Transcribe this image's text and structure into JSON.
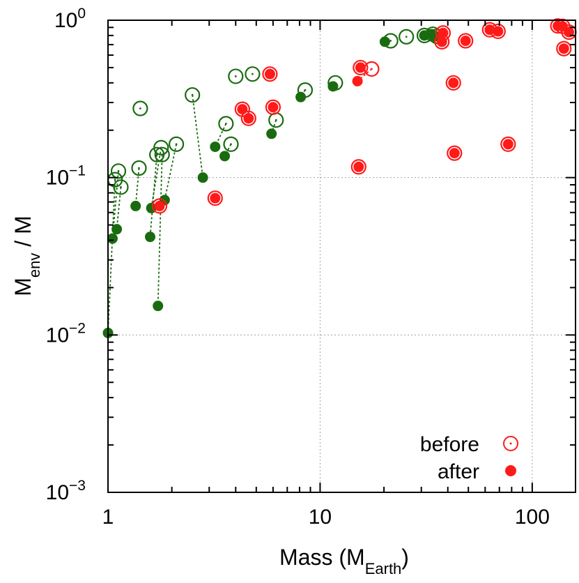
{
  "chart_data": {
    "type": "scatter",
    "x_scale": "log",
    "y_scale": "log",
    "xlim": [
      1,
      160
    ],
    "ylim": [
      0.001,
      1.0
    ],
    "grid": true,
    "x_ticks": [
      {
        "value": 1,
        "label": "1"
      },
      {
        "value": 10,
        "label": "10"
      },
      {
        "value": 100,
        "label": "100"
      }
    ],
    "y_ticks": [
      {
        "value": 0.001,
        "base": "10",
        "exp": "−3"
      },
      {
        "value": 0.01,
        "base": "10",
        "exp": "−2"
      },
      {
        "value": 0.1,
        "base": "10",
        "exp": "−1"
      },
      {
        "value": 1.0,
        "base": "10",
        "exp": "0"
      }
    ],
    "xlabel": {
      "main": "Mass (M",
      "sub": "Earth",
      "close": ")"
    },
    "ylabel": {
      "main": "M",
      "sub": "env",
      "rest": " / M"
    },
    "legend": {
      "position": "bottom-right",
      "entries": [
        {
          "label": "before",
          "marker": "open-circle-dot"
        },
        {
          "label": "after",
          "marker": "filled-circle"
        }
      ]
    },
    "colors": {
      "green": "#1a6b10",
      "red": "#ff1a1a"
    },
    "series": [
      {
        "name": "green",
        "color": "#1a6b10",
        "pairs": [
          {
            "before": [
              1.08,
              0.097
            ],
            "after": [
              1.0,
              0.0103
            ]
          },
          {
            "before": [
              1.12,
              0.11
            ],
            "after": [
              1.05,
              0.041
            ]
          },
          {
            "before": [
              1.15,
              0.087
            ],
            "after": [
              1.1,
              0.047
            ]
          },
          {
            "before": [
              1.4,
              0.115
            ],
            "after": [
              1.35,
              0.066
            ]
          },
          {
            "before": [
              1.42,
              0.275
            ]
          },
          {
            "before": [
              1.7,
              0.14
            ],
            "after": [
              1.58,
              0.042
            ]
          },
          {
            "before": [
              1.78,
              0.155
            ],
            "after": [
              1.6,
              0.064
            ]
          },
          {
            "before": [
              1.8,
              0.14
            ],
            "after": [
              1.72,
              0.0153
            ]
          },
          {
            "before": [
              2.1,
              0.163
            ],
            "after": [
              1.85,
              0.072
            ]
          },
          {
            "before": [
              2.5,
              0.335
            ],
            "after": [
              2.8,
              0.1
            ]
          },
          {
            "before": [
              3.6,
              0.22
            ],
            "after": [
              3.2,
              0.157
            ]
          },
          {
            "before": [
              3.8,
              0.163
            ],
            "after": [
              3.55,
              0.137
            ]
          },
          {
            "before": [
              4.0,
              0.44
            ]
          },
          {
            "before": [
              4.8,
              0.455
            ]
          },
          {
            "before": [
              6.2,
              0.232
            ],
            "after": [
              5.9,
              0.19
            ]
          },
          {
            "before": [
              8.5,
              0.36
            ],
            "after": [
              8.1,
              0.325
            ]
          },
          {
            "before": [
              11.8,
              0.4
            ],
            "after": [
              11.5,
              0.38
            ]
          },
          {
            "before": [
              21.5,
              0.74
            ],
            "after": [
              20.2,
              0.73
            ]
          },
          {
            "before": [
              25.5,
              0.785
            ]
          },
          {
            "before": [
              31.0,
              0.8
            ],
            "after": [
              31.0,
              0.8
            ]
          },
          {
            "before": [
              34.0,
              0.815
            ],
            "after": [
              33.5,
              0.815
            ]
          },
          {
            "before": [
              35.5,
              0.79
            ],
            "after": [
              35.0,
              0.79
            ]
          }
        ]
      },
      {
        "name": "red",
        "color": "#ff1a1a",
        "pairs": [
          {
            "before": [
              1.75,
              0.066
            ],
            "after": [
              1.75,
              0.066
            ]
          },
          {
            "before": [
              3.2,
              0.074
            ],
            "after": [
              3.2,
              0.074
            ]
          },
          {
            "before": [
              4.3,
              0.272
            ],
            "after": [
              4.3,
              0.272
            ]
          },
          {
            "before": [
              4.6,
              0.238
            ],
            "after": [
              4.6,
              0.238
            ]
          },
          {
            "before": [
              5.8,
              0.455
            ],
            "after": [
              5.8,
              0.455
            ]
          },
          {
            "before": [
              6.0,
              0.28
            ],
            "after": [
              6.0,
              0.28
            ]
          },
          {
            "before": [
              15.2,
              0.117
            ],
            "after": [
              15.2,
              0.117
            ]
          },
          {
            "before": [
              15.5,
              0.5
            ],
            "after": [
              15.5,
              0.5
            ]
          },
          {
            "before": [
              17.5,
              0.49
            ],
            "after": [
              15.0,
              0.41
            ]
          },
          {
            "before": [
              38.0,
              0.83
            ],
            "after": [
              38.0,
              0.83
            ]
          },
          {
            "before": [
              37.5,
              0.73
            ],
            "after": [
              37.5,
              0.73
            ]
          },
          {
            "before": [
              42.5,
              0.4
            ],
            "after": [
              42.5,
              0.4
            ]
          },
          {
            "before": [
              43.0,
              0.143
            ],
            "after": [
              43.0,
              0.143
            ]
          },
          {
            "before": [
              48.5,
              0.74
            ],
            "after": [
              48.5,
              0.74
            ]
          },
          {
            "before": [
              63.0,
              0.87
            ],
            "after": [
              63.0,
              0.87
            ]
          },
          {
            "before": [
              69.0,
              0.85
            ],
            "after": [
              69.0,
              0.85
            ]
          },
          {
            "before": [
              77.0,
              0.163
            ],
            "after": [
              77.0,
              0.163
            ]
          },
          {
            "before": [
              132.0,
              0.92
            ],
            "after": [
              132.0,
              0.92
            ]
          },
          {
            "before": [
              139.0,
              0.915
            ],
            "after": [
              139.0,
              0.915
            ]
          },
          {
            "before": [
              141.0,
              0.66
            ],
            "after": [
              141.0,
              0.66
            ]
          },
          {
            "before": [
              149.0,
              0.84
            ],
            "after": [
              149.0,
              0.84
            ]
          }
        ]
      }
    ]
  }
}
